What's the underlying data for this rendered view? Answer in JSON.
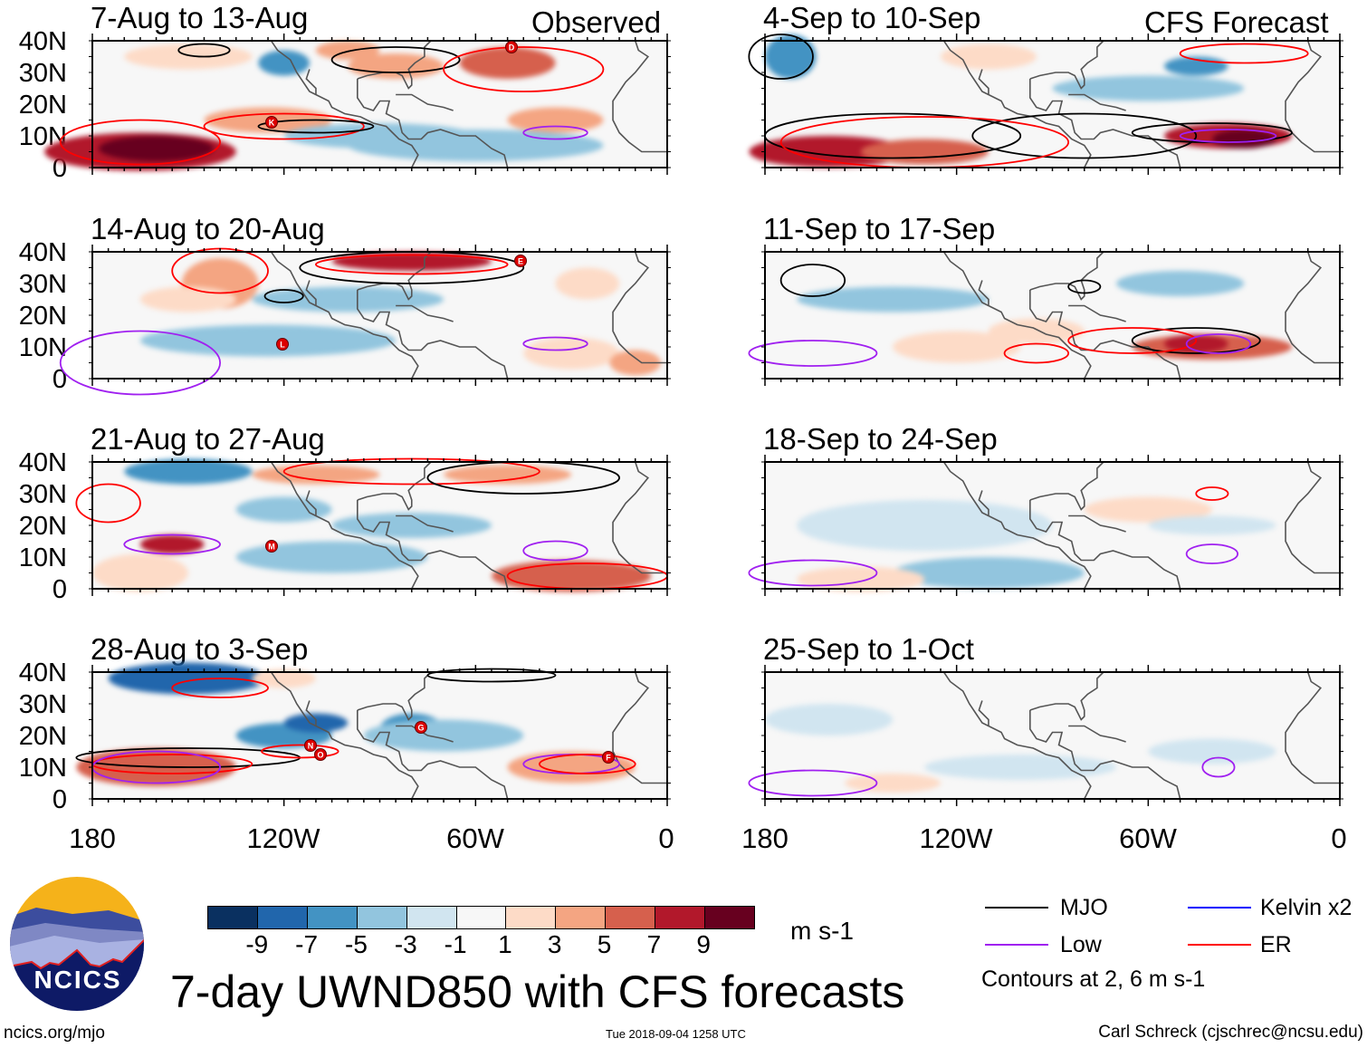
{
  "figure_title": "7-day UWND850 with CFS forecasts",
  "site": "ncics.org/mjo",
  "timestamp": "Tue 2018-09-04 1258 UTC",
  "author": "Carl Schreck (cjschrec@ncsu.edu)",
  "logo_text": "NCICS",
  "column_labels": {
    "observed": "Observed",
    "forecast": "CFS Forecast"
  },
  "panels": [
    {
      "title": "7-Aug to 13-Aug",
      "storms": [
        "D",
        "K"
      ]
    },
    {
      "title": "14-Aug to 20-Aug",
      "storms": [
        "E",
        "L"
      ]
    },
    {
      "title": "21-Aug to 27-Aug",
      "storms": [
        "M"
      ]
    },
    {
      "title": "28-Aug to 3-Sep",
      "storms": [
        "G",
        "N",
        "O",
        "F"
      ]
    },
    {
      "title": "4-Sep to 10-Sep",
      "storms": []
    },
    {
      "title": "11-Sep to 17-Sep",
      "storms": []
    },
    {
      "title": "18-Sep to 24-Sep",
      "storms": []
    },
    {
      "title": "25-Sep to 1-Oct",
      "storms": []
    }
  ],
  "chart_data": {
    "type": "heatmap",
    "variable": "850-hPa zonal wind anomaly, 7-day mean",
    "units": "m s-1",
    "lat_ticks": [
      "40N",
      "30N",
      "20N",
      "10N",
      "0"
    ],
    "lon_ticks": [
      "180",
      "120W",
      "60W",
      "0"
    ],
    "lat_range": [
      0,
      40
    ],
    "lon_range": [
      -180,
      0
    ],
    "colorbar": {
      "levels": [
        "-9",
        "-7",
        "-5",
        "-3",
        "-1",
        "1",
        "3",
        "5",
        "7",
        "9"
      ],
      "colors": [
        "#0a3060",
        "#2166ac",
        "#4393c3",
        "#92c5de",
        "#d1e5f0",
        "#f7f7f7",
        "#fddbc7",
        "#f4a582",
        "#d6604d",
        "#b2182b",
        "#67001f"
      ],
      "units": "m s-1"
    },
    "legend": [
      {
        "label": "MJO",
        "color": "#000000"
      },
      {
        "label": "Kelvin x2",
        "color": "#0000ff"
      },
      {
        "label": "Low",
        "color": "#a020f0"
      },
      {
        "label": "ER",
        "color": "#ff0000"
      }
    ],
    "contour_note": "Contours at 2, 6 m s-1"
  }
}
